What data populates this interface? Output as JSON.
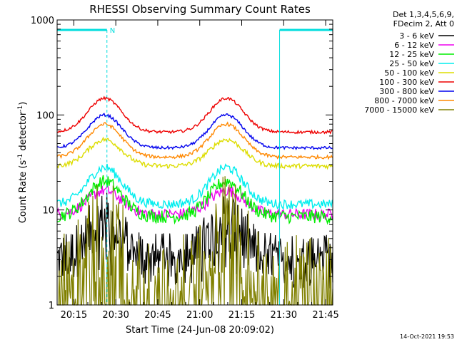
{
  "chart_data": {
    "type": "line",
    "title": "RHESSI Observing Summary Count Rates",
    "xlabel": "Start Time (24-Jun-08 20:09:02)",
    "ylabel_main": "Count Rate (s",
    "ylabel_sup1": "-1",
    "ylabel_mid": " detector",
    "ylabel_sup2": "-1",
    "ylabel_end": ")",
    "yscale": "log",
    "ylim": [
      1,
      1000
    ],
    "xlim_minutes": [
      0,
      98.5
    ],
    "x_ticks": [
      "20:15",
      "20:30",
      "20:45",
      "21:00",
      "21:15",
      "21:30",
      "21:45"
    ],
    "y_ticks": [
      "1",
      "10",
      "100",
      "1000"
    ],
    "legend": {
      "placement": "right",
      "header1": "Det 1,3,4,5,6,9,",
      "header2": "FDecim 2, Att 0"
    },
    "night_marker": "N",
    "footer_date": "14-Oct-2021 19:53",
    "series": [
      {
        "name": "3 - 6 keV",
        "color": "#000000",
        "base": 2.9,
        "peak": 8.0,
        "noise": 0.5,
        "spiky": true
      },
      {
        "name": "6 - 12 keV",
        "color": "#ee00ee",
        "base": 9.0,
        "peak": 16.0,
        "noise": 0.12,
        "spiky": false
      },
      {
        "name": "12 - 25 keV",
        "color": "#00ee00",
        "base": 8.5,
        "peak": 20.0,
        "noise": 0.14,
        "spiky": false
      },
      {
        "name": "25 - 50 keV",
        "color": "#00eeee",
        "base": 11.5,
        "peak": 28.0,
        "noise": 0.1,
        "spiky": false
      },
      {
        "name": "50 - 100 keV",
        "color": "#dddd00",
        "base": 29.0,
        "peak": 55.0,
        "noise": 0.05,
        "spiky": false
      },
      {
        "name": "100 - 300 keV",
        "color": "#ee0000",
        "base": 66.0,
        "peak": 150.0,
        "noise": 0.03,
        "spiky": false
      },
      {
        "name": "300 - 800 keV",
        "color": "#0000ee",
        "base": 45.0,
        "peak": 100.0,
        "noise": 0.03,
        "spiky": false
      },
      {
        "name": "800 - 7000 keV",
        "color": "#ff8800",
        "base": 36.0,
        "peak": 80.0,
        "noise": 0.035,
        "spiky": false
      },
      {
        "name": "7000 - 15000 keV",
        "color": "#808000",
        "base": 1.6,
        "peak": 7.0,
        "noise": 0.9,
        "spiky": true
      }
    ],
    "peaks_minutes": [
      17.0,
      60.5
    ],
    "saa_or_night_intervals": [
      [
        0,
        17.8
      ],
      [
        79.5,
        98.5
      ]
    ]
  }
}
